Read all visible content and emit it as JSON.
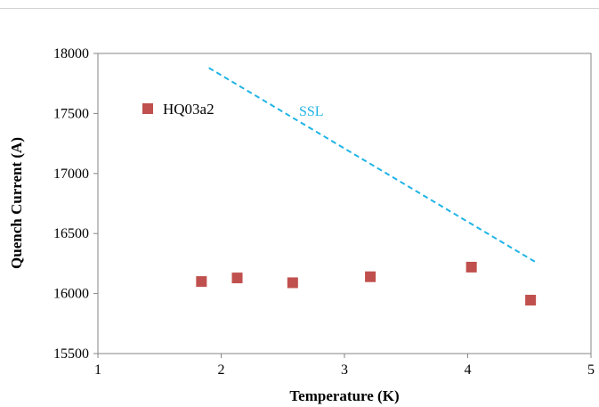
{
  "chart_data": {
    "type": "scatter",
    "xlabel": "Temperature (K)",
    "ylabel": "Quench Current (A)",
    "xlim": [
      1,
      5
    ],
    "ylim": [
      15500,
      18000
    ],
    "xticks": [
      1,
      2,
      3,
      4,
      5
    ],
    "yticks": [
      15500,
      16000,
      16500,
      17000,
      17500,
      18000
    ],
    "grid": false,
    "legend_position": "top-left",
    "series": [
      {
        "name": "HQ03a2",
        "marker": "square",
        "color": "#c0504d",
        "x": [
          1.84,
          2.13,
          2.58,
          3.21,
          4.03,
          4.51
        ],
        "y": [
          16100,
          16130,
          16090,
          16140,
          16220,
          15945
        ]
      }
    ],
    "lines": [
      {
        "label": "SSL",
        "style": "dashed",
        "color": "#1fb4e6",
        "x": [
          1.9,
          4.57
        ],
        "y": [
          17880,
          16250
        ]
      }
    ]
  }
}
